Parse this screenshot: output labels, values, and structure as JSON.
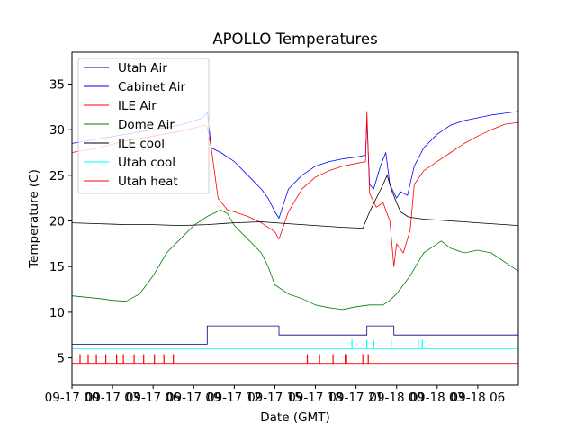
{
  "chart_data": {
    "type": "line",
    "title": "APOLLO Temperatures",
    "xlabel": "Date (GMT)",
    "ylabel": "Temperature (C)",
    "xlim": [
      0,
      33
    ],
    "ylim": [
      2,
      38.5
    ],
    "x_unit": "hours since 09-17 00:00 GMT (approx.)",
    "yticks": [
      5,
      10,
      15,
      20,
      25,
      30,
      35
    ],
    "xticks": [
      {
        "x": 0,
        "label": "09-17 00"
      },
      {
        "x": 3,
        "label": "09-17 03"
      },
      {
        "x": 6,
        "label": "09-17 06"
      },
      {
        "x": 9,
        "label": "09-17 09"
      },
      {
        "x": 12,
        "label": "09-17 12"
      },
      {
        "x": 15,
        "label": "09-17 15"
      },
      {
        "x": 18,
        "label": "09-17 18"
      },
      {
        "x": 21,
        "label": "09-17 21"
      },
      {
        "x": 24,
        "label": "09-18 00"
      },
      {
        "x": 27,
        "label": "09-18 03"
      },
      {
        "x": 30,
        "label": "09-18 06"
      }
    ],
    "legend_position": "top-left",
    "series": [
      {
        "name": "Utah Air",
        "color": "#000080",
        "style": "step",
        "x": [
          0,
          10,
          10,
          15.3,
          15.3,
          21.8,
          21.8,
          23.8,
          23.8,
          33
        ],
        "y": [
          6.5,
          6.5,
          8.5,
          8.5,
          7.5,
          7.5,
          8.5,
          8.5,
          7.5,
          7.5
        ]
      },
      {
        "name": "Cabinet Air",
        "color": "#0000ff",
        "x": [
          0,
          2,
          4,
          6,
          8,
          9.5,
          9.8,
          10,
          10.3,
          11,
          12,
          13,
          14,
          14.5,
          15,
          15.3,
          16,
          17,
          18,
          19,
          20,
          21,
          21.7,
          21.8,
          22,
          22.3,
          22.8,
          23.2,
          23.5,
          24,
          24.3,
          24.8,
          25.3,
          26,
          27,
          28,
          29,
          30,
          31,
          32,
          33
        ],
        "y": [
          28.5,
          29,
          29.5,
          30,
          30.5,
          31.2,
          31.5,
          32,
          28,
          27.5,
          26.5,
          25,
          23.5,
          22.5,
          21,
          20.3,
          23.5,
          25,
          26,
          26.5,
          26.8,
          27,
          27.2,
          31,
          24,
          23.5,
          26,
          27.5,
          24,
          22.5,
          23.2,
          22.8,
          26,
          28,
          29.5,
          30.5,
          31,
          31.3,
          31.6,
          31.8,
          32
        ]
      },
      {
        "name": "ILE Air",
        "color": "#ff0000",
        "x": [
          0,
          2,
          4,
          6,
          8,
          9.8,
          10,
          10.3,
          10.8,
          11.5,
          12,
          13,
          14,
          15,
          15.3,
          16,
          17,
          18,
          19,
          20,
          21,
          21.7,
          21.8,
          22,
          22.5,
          23,
          23.5,
          23.8,
          24,
          24.5,
          25,
          25.3,
          26,
          27,
          28,
          29,
          30,
          31,
          32,
          33
        ],
        "y": [
          27.5,
          28,
          28.8,
          29.3,
          29.8,
          30.5,
          30.3,
          28,
          22.5,
          21.2,
          21,
          20.5,
          19.8,
          18.8,
          18,
          21,
          23.5,
          24.8,
          25.5,
          26,
          26.3,
          26.5,
          32,
          23,
          21.5,
          22,
          20,
          15,
          17.5,
          16.5,
          19,
          24,
          25.5,
          26.5,
          27.5,
          28.5,
          29.3,
          30,
          30.6,
          30.8
        ]
      },
      {
        "name": "Dome Air",
        "color": "#008000",
        "x": [
          0,
          2,
          3,
          4,
          5,
          6,
          7,
          8,
          9,
          10,
          11,
          11.5,
          12,
          13,
          14,
          14.5,
          15,
          16,
          17,
          18,
          19,
          20,
          21,
          22,
          23,
          23.5,
          24,
          25,
          26,
          27,
          27.3,
          28,
          29,
          30,
          31,
          32,
          33
        ],
        "y": [
          11.8,
          11.5,
          11.3,
          11.2,
          12,
          14,
          16.5,
          18,
          19.5,
          20.5,
          21.2,
          20.8,
          19.5,
          18,
          16.5,
          15,
          13,
          12,
          11.5,
          10.8,
          10.5,
          10.3,
          10.6,
          10.8,
          10.8,
          11.3,
          12,
          14,
          16.5,
          17.5,
          17.8,
          17,
          16.5,
          16.8,
          16.5,
          15.5,
          14.5
        ]
      },
      {
        "name": "ILE cool",
        "color": "#000000",
        "x": [
          0,
          2,
          4,
          6,
          8,
          10,
          12,
          14,
          16,
          18,
          20,
          21.5,
          22,
          22.5,
          23,
          23.3,
          23.6,
          24,
          24.3,
          24.8,
          25,
          25.5,
          26,
          27,
          28,
          29,
          30,
          31,
          32,
          33
        ],
        "y": [
          19.8,
          19.7,
          19.6,
          19.6,
          19.5,
          19.6,
          19.8,
          19.9,
          19.7,
          19.5,
          19.3,
          19.2,
          21,
          22.5,
          24,
          25,
          23.5,
          22,
          21,
          20.5,
          20.4,
          20.3,
          20.2,
          20.1,
          20,
          19.9,
          19.8,
          19.7,
          19.6,
          19.5
        ]
      },
      {
        "name": "Utah cool",
        "color": "#00ffff",
        "style": "step",
        "x": [
          0,
          33
        ],
        "y": [
          6,
          6
        ],
        "spikes_x": [
          20.7,
          21.8,
          22.3,
          23.6,
          25.6,
          25.9
        ],
        "spike_top": 7.0
      },
      {
        "name": "Utah heat",
        "color": "#ff0000",
        "style": "step",
        "x": [
          0,
          33
        ],
        "y": [
          4.4,
          4.4
        ],
        "spikes_x": [
          0.6,
          1.2,
          1.8,
          2.5,
          3.3,
          3.8,
          4.6,
          5.3,
          6.1,
          6.8,
          7.5,
          17.4,
          18.3,
          19.3,
          20.2,
          20.3,
          21.5,
          21.9
        ],
        "spike_top": 5.4
      }
    ]
  }
}
